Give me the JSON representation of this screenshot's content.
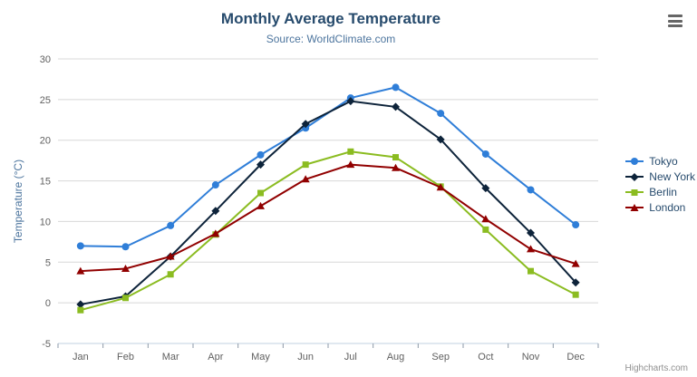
{
  "chart": {
    "title": "Monthly Average Temperature",
    "subtitle": "Source: WorldClimate.com",
    "y_axis_title": "Temperature (°C)",
    "credits": "Highcharts.com"
  },
  "chart_data": {
    "type": "line",
    "title": "Monthly Average Temperature",
    "subtitle": "Source: WorldClimate.com",
    "xlabel": "",
    "ylabel": "Temperature (°C)",
    "ylim": [
      -5,
      30
    ],
    "ytick_step": 5,
    "grid": true,
    "legend_position": "right",
    "categories": [
      "Jan",
      "Feb",
      "Mar",
      "Apr",
      "May",
      "Jun",
      "Jul",
      "Aug",
      "Sep",
      "Oct",
      "Nov",
      "Dec"
    ],
    "series": [
      {
        "name": "Tokyo",
        "color": "#2f7ed8",
        "marker": "circle",
        "values": [
          7.0,
          6.9,
          9.5,
          14.5,
          18.2,
          21.5,
          25.2,
          26.5,
          23.3,
          18.3,
          13.9,
          9.6
        ]
      },
      {
        "name": "New York",
        "color": "#0d233a",
        "marker": "diamond",
        "values": [
          -0.2,
          0.8,
          5.7,
          11.3,
          17.0,
          22.0,
          24.8,
          24.1,
          20.1,
          14.1,
          8.6,
          2.5
        ]
      },
      {
        "name": "Berlin",
        "color": "#8bbc21",
        "marker": "square",
        "values": [
          -0.9,
          0.6,
          3.5,
          8.4,
          13.5,
          17.0,
          18.6,
          17.9,
          14.3,
          9.0,
          3.9,
          1.0
        ]
      },
      {
        "name": "London",
        "color": "#910000",
        "marker": "triangle",
        "values": [
          3.9,
          4.2,
          5.7,
          8.5,
          11.9,
          15.2,
          17.0,
          16.6,
          14.2,
          10.3,
          6.6,
          4.8
        ]
      }
    ]
  }
}
